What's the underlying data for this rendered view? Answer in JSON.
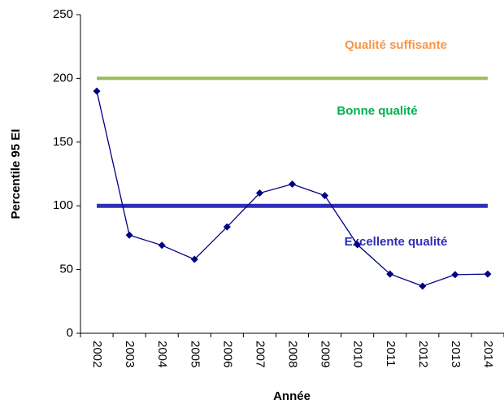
{
  "chart_data": {
    "type": "line",
    "categories": [
      "2002",
      "2003",
      "2004",
      "2005",
      "2006",
      "2007",
      "2008",
      "2009",
      "2010",
      "2011",
      "2012",
      "2013",
      "2014"
    ],
    "values": [
      190,
      77,
      69,
      58,
      83.5,
      110,
      117,
      108,
      69.5,
      46.5,
      37,
      46,
      46.5
    ],
    "color": "#000080",
    "ylim": [
      0,
      250
    ],
    "yticks": [
      0,
      50,
      100,
      150,
      200,
      250
    ],
    "ylabel": "Percentile 95 EI",
    "xlabel": "Année",
    "thresholds": [
      {
        "value": 200,
        "color": "#9bbb59"
      },
      {
        "value": 100,
        "color": "#2e2eb8"
      }
    ],
    "annotations": [
      {
        "text": "Qualité suffisante",
        "color": "#f79646"
      },
      {
        "text": "Bonne qualité",
        "color": "#00b050"
      },
      {
        "text": "Excellente qualité",
        "color": "#2e2eb8"
      }
    ]
  }
}
